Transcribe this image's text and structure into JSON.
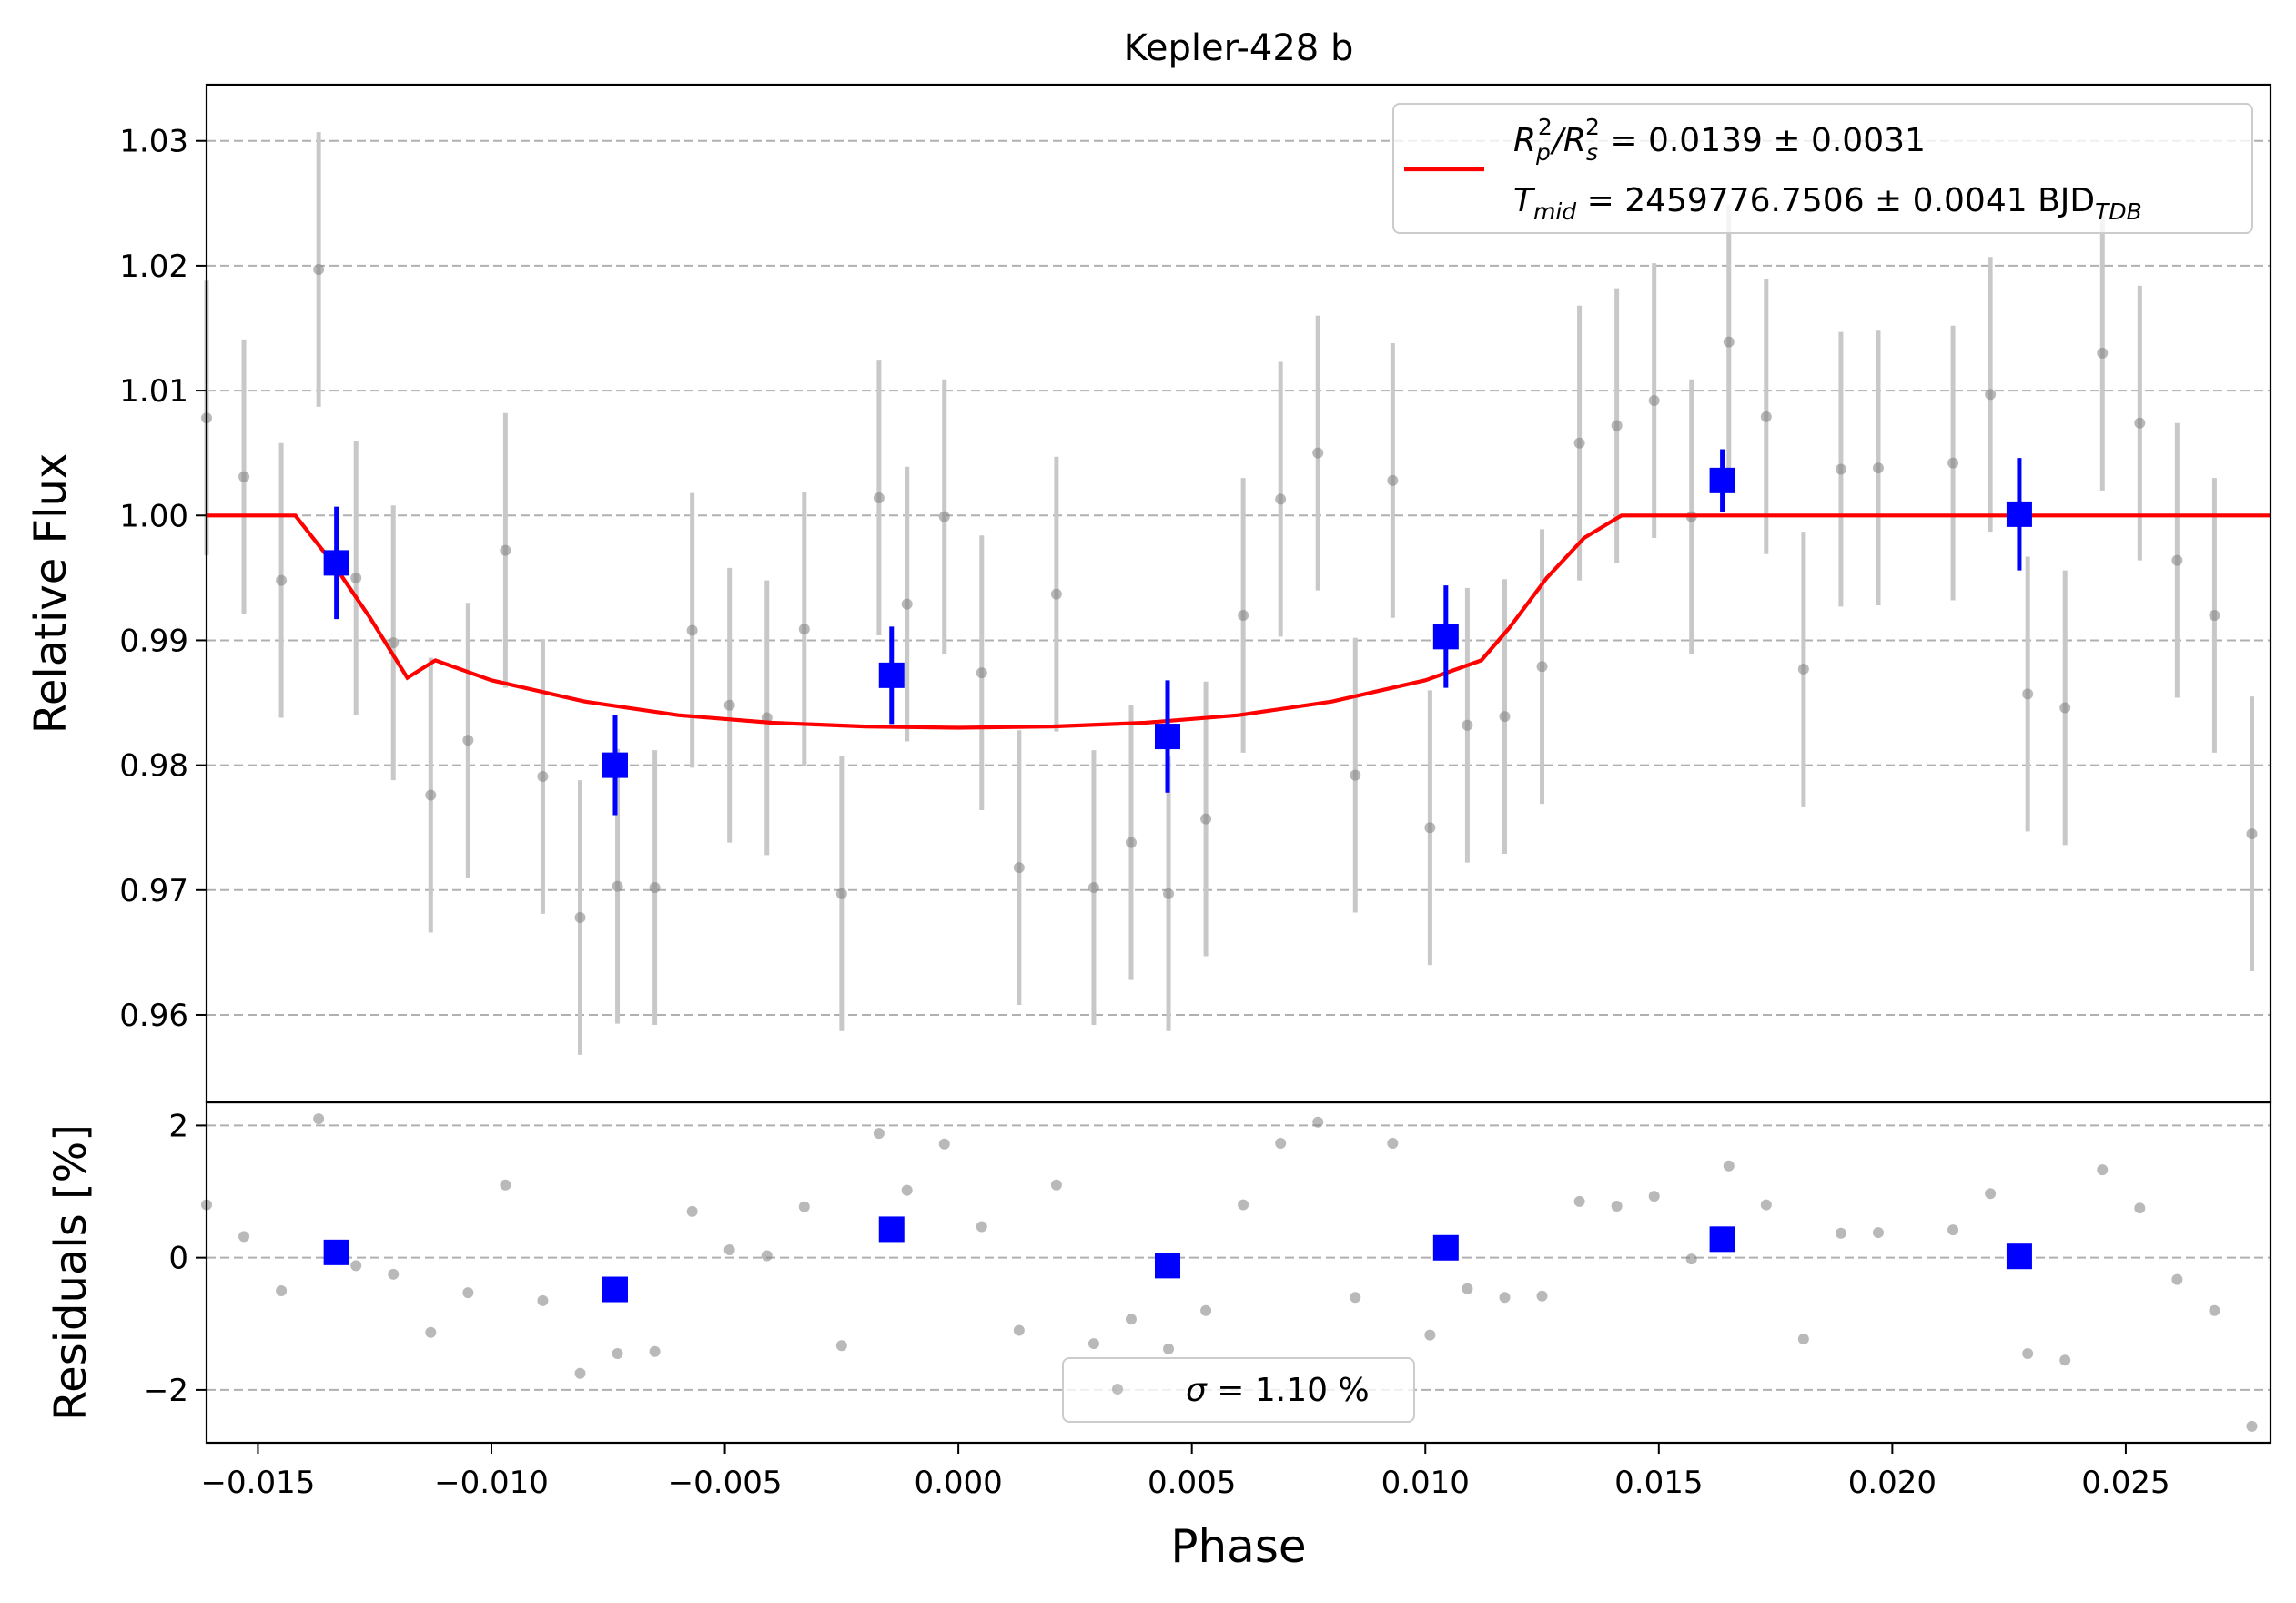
{
  "chart_data": [
    {
      "type": "scatter",
      "title": "Kepler-428 b",
      "xlabel": "",
      "ylabel": "Relative Flux",
      "xlim": [
        -0.0161,
        0.0281
      ],
      "ylim": [
        0.953,
        1.0345
      ],
      "yticks": [
        0.96,
        0.97,
        0.98,
        0.99,
        1.0,
        1.01,
        1.02,
        1.03
      ],
      "ytick_labels": [
        "0.96",
        "0.97",
        "0.98",
        "0.99",
        "1.00",
        "1.01",
        "1.02",
        "1.03"
      ],
      "grid": "horizontal dashed",
      "legend_placement": "top-right",
      "legend": {
        "line1_parts": [
          "R",
          "p",
          "2",
          "/R",
          "s",
          "2",
          " = 0.0139 ± 0.0031"
        ],
        "line2_parts": [
          "T",
          "mid",
          " = 2459776.7506 ± 0.0041 BJD",
          "TDB"
        ]
      },
      "colors": {
        "raw": "#808080",
        "raw_err": "#c8c8c8",
        "binned": "#0000ff",
        "model": "#ff0000",
        "grid": "#b0b0b0"
      },
      "series": [
        {
          "kind": "raw",
          "x": [
            -0.0161,
            -0.0153,
            -0.0145,
            -0.0137,
            -0.0129,
            -0.0121,
            -0.0113,
            -0.0105,
            -0.0097,
            -0.0089,
            -0.0081,
            -0.0073,
            -0.0065,
            -0.0057,
            -0.0049,
            -0.0041,
            -0.0033,
            -0.0025,
            -0.0017,
            -0.0011,
            -0.0003,
            0.0005,
            0.0013,
            0.0021,
            0.0029,
            0.0037,
            0.0045,
            0.0053,
            0.0061,
            0.0069,
            0.0077,
            0.0085,
            0.0093,
            0.0101,
            0.0109,
            0.0117,
            0.0125,
            0.0133,
            0.0141,
            0.0149,
            0.0157,
            0.0165,
            0.0173,
            0.0181,
            0.0189,
            0.0197,
            0.0213,
            0.0221,
            0.0229,
            0.0237,
            0.0245,
            0.0253,
            0.0261,
            0.0269,
            0.0277
          ],
          "y": [
            1.0078,
            1.0031,
            0.9948,
            1.0197,
            0.995,
            0.9898,
            0.9776,
            0.982,
            0.9972,
            0.9791,
            0.9678,
            0.9703,
            0.9702,
            0.9908,
            0.9848,
            0.9838,
            0.9909,
            0.9697,
            1.0014,
            0.9929,
            0.9999,
            0.9874,
            0.9718,
            0.9937,
            0.9702,
            0.9738,
            0.9697,
            0.9757,
            0.992,
            1.0013,
            1.005,
            0.9792,
            1.0028,
            0.975,
            0.9832,
            0.9839,
            0.9879,
            1.0058,
            1.0072,
            1.0092,
            0.9999,
            1.0139,
            1.0079,
            0.9877,
            1.0037,
            1.0038,
            1.0042,
            1.0097,
            0.9857,
            0.9846,
            1.013,
            1.0074,
            0.9964,
            0.992,
            0.9745
          ],
          "err": 0.011
        },
        {
          "kind": "binned",
          "x": [
            -0.01332,
            -0.00735,
            -0.00143,
            0.00448,
            0.01044,
            0.01636,
            0.02272
          ],
          "y": [
            0.9962,
            0.98,
            0.9872,
            0.9823,
            0.9903,
            1.0028,
            1.0001
          ],
          "err": [
            0.0045,
            0.004,
            0.0039,
            0.0045,
            0.0041,
            0.0025,
            0.0045
          ]
        },
        {
          "kind": "model",
          "name": "",
          "x": [
            -0.0161,
            -0.0142,
            -0.0134,
            -0.0126,
            -0.0118,
            -0.0112,
            -0.01,
            -0.008,
            -0.006,
            -0.004,
            -0.002,
            0.0,
            0.002,
            0.004,
            0.006,
            0.008,
            0.01,
            0.0112,
            0.0118,
            0.0126,
            0.0134,
            0.0142,
            0.0281
          ],
          "y": [
            1.0,
            1.0,
            0.9962,
            0.9918,
            0.987,
            0.9884,
            0.9868,
            0.9851,
            0.984,
            0.9834,
            0.9831,
            0.983,
            0.9831,
            0.9834,
            0.984,
            0.9851,
            0.9868,
            0.9884,
            0.991,
            0.995,
            0.9982,
            1.0,
            1.0
          ]
        }
      ]
    },
    {
      "type": "scatter",
      "title": "",
      "xlabel": "Phase",
      "ylabel": "Residuals [%]",
      "xlim": [
        -0.0161,
        0.0281
      ],
      "ylim": [
        -2.8,
        2.35
      ],
      "yticks": [
        -2,
        0,
        2
      ],
      "ytick_labels": [
        "−2",
        "0",
        "2"
      ],
      "xticks": [
        -0.015,
        -0.01,
        -0.005,
        0.0,
        0.005,
        0.01,
        0.015,
        0.02,
        0.025
      ],
      "xtick_labels": [
        "−0.015",
        "−0.010",
        "−0.005",
        "0.000",
        "0.005",
        "0.010",
        "0.015",
        "0.020",
        "0.025"
      ],
      "grid": "horizontal dashed",
      "legend_placement": "bottom-center",
      "legend": {
        "parts": [
          "σ",
          " = 1.10 %"
        ]
      },
      "series": [
        {
          "kind": "raw",
          "x": [
            -0.0161,
            -0.0153,
            -0.0145,
            -0.0137,
            -0.0129,
            -0.0121,
            -0.0113,
            -0.0105,
            -0.0097,
            -0.0089,
            -0.0081,
            -0.0073,
            -0.0065,
            -0.0057,
            -0.0049,
            -0.0041,
            -0.0033,
            -0.0025,
            -0.0017,
            -0.0011,
            -0.0003,
            0.0005,
            0.0013,
            0.0021,
            0.0029,
            0.0037,
            0.0045,
            0.0053,
            0.0061,
            0.0069,
            0.0077,
            0.0085,
            0.0093,
            0.0101,
            0.0109,
            0.0117,
            0.0125,
            0.0133,
            0.0141,
            0.0149,
            0.0157,
            0.0165,
            0.0173,
            0.0181,
            0.0189,
            0.0197,
            0.0213,
            0.0221,
            0.0229,
            0.0237,
            0.0245,
            0.0253,
            0.0261,
            0.0269,
            0.0277
          ],
          "y": [
            0.8,
            0.32,
            -0.5,
            2.1,
            -0.12,
            -0.25,
            -1.13,
            -0.53,
            1.1,
            -0.65,
            -1.75,
            -1.45,
            -1.42,
            0.7,
            0.12,
            0.03,
            0.77,
            -1.33,
            1.88,
            1.02,
            1.72,
            0.47,
            -1.1,
            1.1,
            -1.3,
            -0.93,
            -1.38,
            -0.8,
            0.8,
            1.73,
            2.05,
            -0.6,
            1.73,
            -1.17,
            -0.47,
            -0.6,
            -0.58,
            0.85,
            0.78,
            0.93,
            -0.02,
            1.39,
            0.8,
            -1.23,
            0.37,
            0.38,
            0.42,
            0.97,
            -1.45,
            -1.55,
            1.33,
            0.75,
            -0.33,
            -0.8,
            -2.55
          ]
        },
        {
          "kind": "binned",
          "x": [
            -0.01332,
            -0.00735,
            -0.00143,
            0.00448,
            0.01044,
            0.01636,
            0.02272
          ],
          "y": [
            0.08,
            -0.48,
            0.43,
            -0.12,
            0.15,
            0.28,
            0.02
          ]
        }
      ]
    }
  ]
}
